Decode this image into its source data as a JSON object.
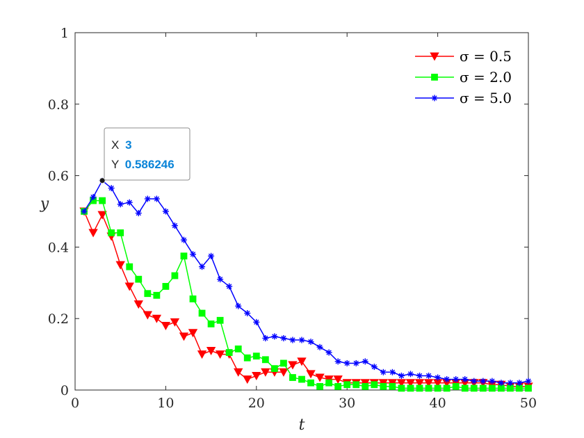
{
  "chart_data": {
    "type": "line",
    "xlabel": "t",
    "ylabel": "y",
    "xlim": [
      0,
      50
    ],
    "ylim": [
      0,
      1
    ],
    "x_ticks": [
      "0",
      "10",
      "20",
      "30",
      "40",
      "50"
    ],
    "y_ticks": [
      "0",
      "0.2",
      "0.4",
      "0.6",
      "0.8",
      "1"
    ],
    "grid": false,
    "legend_position": "top-right",
    "x": [
      1,
      2,
      3,
      4,
      5,
      6,
      7,
      8,
      9,
      10,
      11,
      12,
      13,
      14,
      15,
      16,
      17,
      18,
      19,
      20,
      21,
      22,
      23,
      24,
      25,
      26,
      27,
      28,
      29,
      30,
      31,
      32,
      33,
      34,
      35,
      36,
      37,
      38,
      39,
      40,
      41,
      42,
      43,
      44,
      45,
      46,
      47,
      48,
      49,
      50
    ],
    "series": [
      {
        "name": "σ = 0.5",
        "color": "#ff0000",
        "marker": "triangle-down",
        "values": [
          0.5,
          0.44,
          0.49,
          0.43,
          0.35,
          0.29,
          0.24,
          0.21,
          0.2,
          0.18,
          0.19,
          0.15,
          0.16,
          0.1,
          0.11,
          0.1,
          0.1,
          0.05,
          0.03,
          0.04,
          0.05,
          0.05,
          0.05,
          0.07,
          0.08,
          0.045,
          0.035,
          0.03,
          0.03,
          0.02,
          0.02,
          0.02,
          0.02,
          0.02,
          0.02,
          0.02,
          0.02,
          0.02,
          0.02,
          0.02,
          0.02,
          0.02,
          0.02,
          0.02,
          0.02,
          0.015,
          0.015,
          0.01,
          0.01,
          0.01
        ]
      },
      {
        "name": "σ = 2.0",
        "color": "#00ff00",
        "marker": "square",
        "values": [
          0.5,
          0.53,
          0.53,
          0.44,
          0.44,
          0.345,
          0.31,
          0.27,
          0.265,
          0.29,
          0.32,
          0.375,
          0.255,
          0.215,
          0.185,
          0.195,
          0.105,
          0.115,
          0.09,
          0.095,
          0.085,
          0.06,
          0.075,
          0.035,
          0.03,
          0.02,
          0.01,
          0.02,
          0.01,
          0.015,
          0.015,
          0.01,
          0.015,
          0.01,
          0.01,
          0.005,
          0.005,
          0.005,
          0.005,
          0.005,
          0.005,
          0.01,
          0.005,
          0.005,
          0.005,
          0.005,
          0.005,
          0.005,
          0.005,
          0.005
        ]
      },
      {
        "name": "σ = 5.0",
        "color": "#0000ff",
        "marker": "asterisk",
        "values": [
          0.5,
          0.54,
          0.586246,
          0.565,
          0.52,
          0.525,
          0.495,
          0.535,
          0.535,
          0.5,
          0.46,
          0.42,
          0.38,
          0.345,
          0.375,
          0.31,
          0.29,
          0.235,
          0.215,
          0.19,
          0.145,
          0.15,
          0.145,
          0.14,
          0.14,
          0.135,
          0.12,
          0.105,
          0.08,
          0.075,
          0.075,
          0.08,
          0.065,
          0.05,
          0.05,
          0.04,
          0.045,
          0.04,
          0.04,
          0.035,
          0.03,
          0.03,
          0.03,
          0.025,
          0.025,
          0.025,
          0.02,
          0.02,
          0.02,
          0.025
        ]
      }
    ],
    "datatip": {
      "x_label": "X",
      "x_value": "3",
      "y_label": "Y",
      "y_value": "0.586246",
      "value_color": "#0a84d8"
    }
  }
}
